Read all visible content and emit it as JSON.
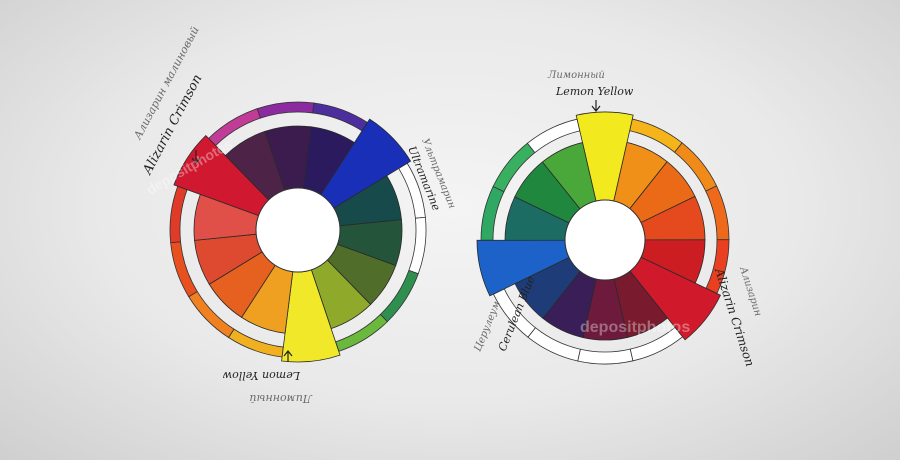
{
  "left_wheel": {
    "colors": [
      "#d01830",
      "#4e2348",
      "#3c1c4e",
      "#2b1b5e",
      "#1a2fb8",
      "#174a4a",
      "#24553a",
      "#506e2a",
      "#8faa2a",
      "#f0e828",
      "#f0a020",
      "#e6601f",
      "#dd4a30",
      "#e05048"
    ],
    "outer_ring": [
      "#d02040",
      "#c03c96",
      "#8c2aa0",
      "#4c2e9e",
      "#ffffff",
      "#ffffff",
      "#ffffff",
      "#2e8f4f",
      "#6ab83c",
      "#f0e020",
      "#f0b020",
      "#f08020",
      "#e85020",
      "#e03a28"
    ],
    "labels": {
      "top_faint": "Ализарин малиновый",
      "alizarin": "Alizarin Crimson",
      "ultra_faint": "Ультрамарин",
      "ultramarine": "Ultramarine",
      "lemon": "Lemon Yellow",
      "lemon_faint": "Лимонный"
    }
  },
  "right_wheel": {
    "colors": [
      "#f2ea1e",
      "#f09018",
      "#ea6a18",
      "#e44a1e",
      "#cc1e22",
      "#d01a2c",
      "#7a1a2e",
      "#6e1a3c",
      "#3a1e58",
      "#1e3c78",
      "#1c62c8",
      "#1c6c64",
      "#20883e",
      "#4aa83a"
    ],
    "outer_ring": [
      "#ffffff",
      "#f4b41a",
      "#f08a18",
      "#ee6a1a",
      "#e84020",
      "#d02228",
      "#ffffff",
      "#ffffff",
      "#ffffff",
      "#ffffff",
      "#5a8ec8",
      "#2ea862",
      "#38b060",
      "#ffffff"
    ],
    "labels": {
      "lemon_faint": "Лимонный",
      "lemon": "Lemon Yellow",
      "alizarin": "Alizarin Crimson",
      "alizarin_faint": "Ализарин",
      "cerulean": "Cerulean Blue",
      "cerulean_faint": "Церулеум"
    }
  },
  "watermark": "depositphotos"
}
